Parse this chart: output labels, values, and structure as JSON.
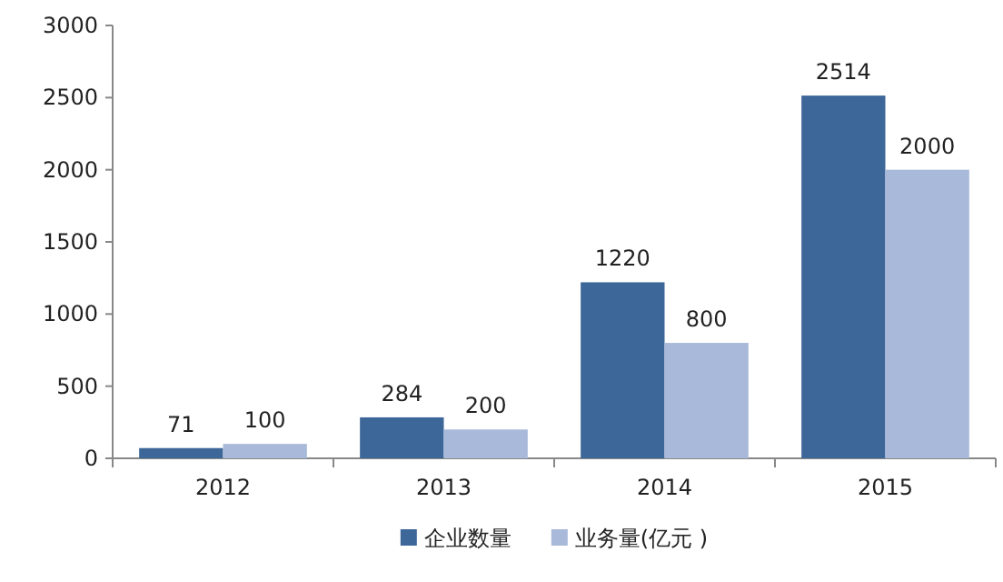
{
  "chart_data": {
    "type": "bar",
    "categories": [
      "2012",
      "2013",
      "2014",
      "2015"
    ],
    "series": [
      {
        "name": "企业数量",
        "color": "#3d6699",
        "values": [
          71,
          284,
          1220,
          2514
        ]
      },
      {
        "name": "业务量(亿元 )",
        "color": "#a9b9d9",
        "values": [
          100,
          200,
          800,
          2000
        ]
      }
    ],
    "ylim": [
      0,
      3000
    ],
    "yticks": [
      0,
      500,
      1000,
      1500,
      2000,
      2500,
      3000
    ],
    "data_labels": true,
    "legend": "bottom"
  }
}
